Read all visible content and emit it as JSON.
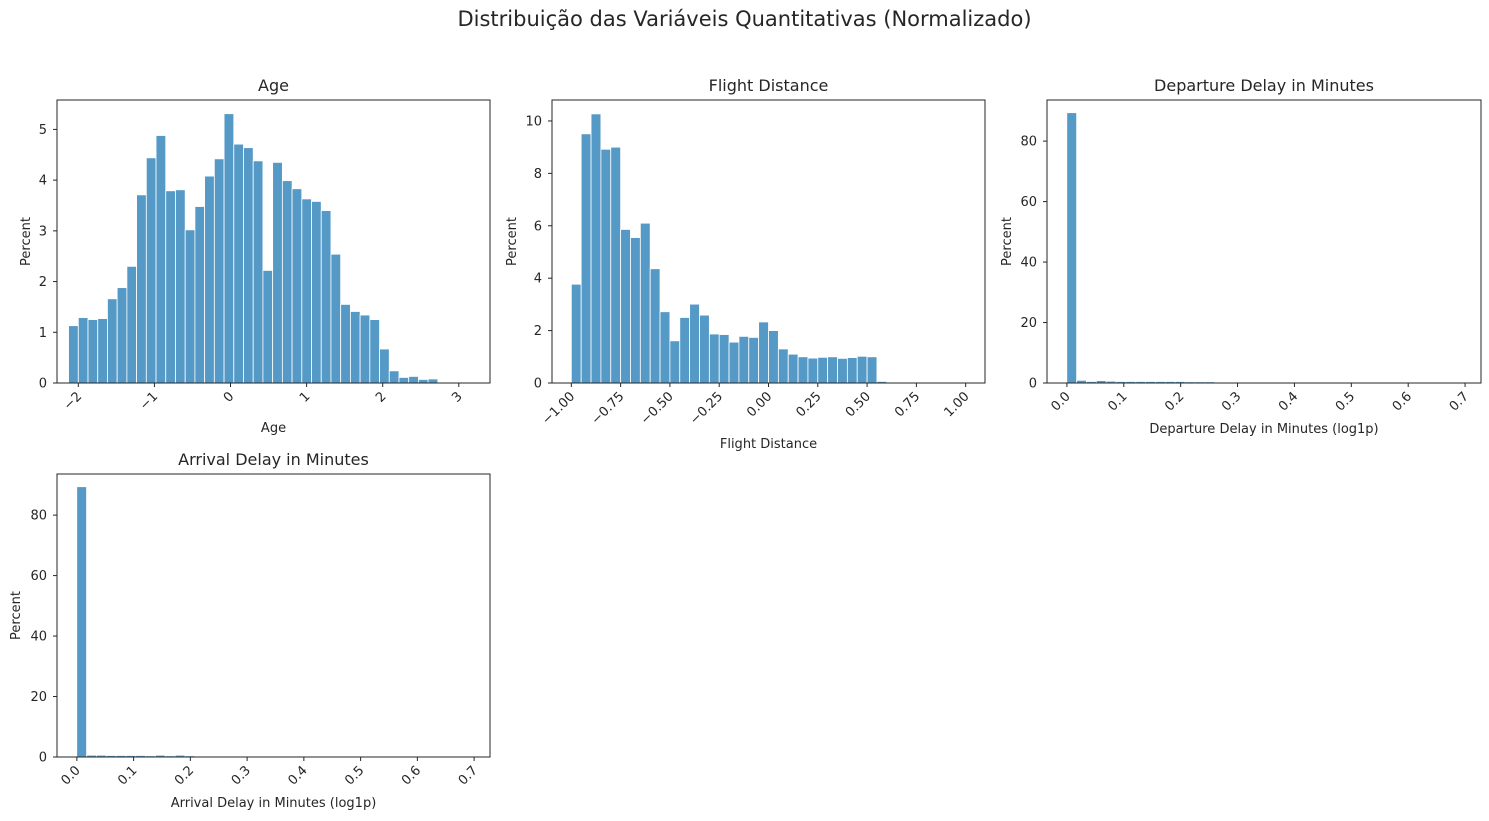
{
  "figure": {
    "title": "Distribuição das Variáveis Quantitativas (Normalizado)",
    "bar_color": "#4c94c4",
    "axis_color": "#262626"
  },
  "chart_data": [
    {
      "type": "bar",
      "title": "Age",
      "xlabel": "Age",
      "ylabel": "Percent",
      "xlim": [
        -2.28,
        3.41
      ],
      "ylim": [
        0,
        5.58
      ],
      "xticks": [
        -2,
        -1,
        0,
        1,
        2,
        3
      ],
      "xtick_labels": [
        "−2",
        "−1",
        "0",
        "1",
        "2",
        "3"
      ],
      "yticks": [
        0,
        1,
        2,
        3,
        4,
        5
      ],
      "ytick_labels": [
        "0",
        "1",
        "2",
        "3",
        "4",
        "5"
      ],
      "bin_start": -2.1279,
      "bin_width": 0.1277,
      "values": [
        1.13,
        1.29,
        1.25,
        1.27,
        1.66,
        1.88,
        2.3,
        3.71,
        4.44,
        4.88,
        3.79,
        3.81,
        3.02,
        3.48,
        4.08,
        4.42,
        5.31,
        4.71,
        4.64,
        4.38,
        2.22,
        4.35,
        3.99,
        3.83,
        3.63,
        3.58,
        3.4,
        2.54,
        1.55,
        1.41,
        1.34,
        1.25,
        0.67,
        0.24,
        0.11,
        0.13,
        0.07,
        0.08,
        0.0,
        0.01
      ]
    },
    {
      "type": "bar",
      "title": "Flight Distance",
      "xlabel": "Flight Distance",
      "ylabel": "Percent",
      "xlim": [
        -1.098,
        1.098
      ],
      "ylim": [
        0,
        10.8
      ],
      "xticks": [
        -1.0,
        -0.75,
        -0.5,
        -0.25,
        0.0,
        0.25,
        0.5,
        0.75,
        1.0
      ],
      "xtick_labels": [
        "−1.00",
        "−0.75",
        "−0.50",
        "−0.25",
        "0.00",
        "0.25",
        "0.50",
        "0.75",
        "1.00"
      ],
      "yticks": [
        0,
        2,
        4,
        6,
        8,
        10
      ],
      "ytick_labels": [
        "0",
        "2",
        "4",
        "6",
        "8",
        "10"
      ],
      "bin_start": -1.0,
      "bin_width": 0.05,
      "values": [
        3.77,
        9.51,
        10.27,
        8.92,
        9.0,
        5.86,
        5.55,
        6.1,
        4.36,
        2.72,
        1.61,
        2.5,
        3.01,
        2.59,
        1.87,
        1.85,
        1.56,
        1.78,
        1.74,
        2.33,
        2.0,
        1.3,
        1.1,
        1.0,
        0.95,
        0.98,
        1.0,
        0.94,
        0.97,
        1.02,
        1.0,
        0.06,
        0.02,
        0.01,
        0.01,
        0.01,
        0.01,
        0.0,
        0.0,
        0.0
      ]
    },
    {
      "type": "bar",
      "title": "Departure Delay in Minutes",
      "xlabel": "Departure Delay in Minutes (log1p)",
      "ylabel": "Percent",
      "xlim": [
        -0.035,
        0.728
      ],
      "ylim": [
        0,
        93.6
      ],
      "xticks": [
        0.0,
        0.1,
        0.2,
        0.3,
        0.4,
        0.5,
        0.6,
        0.7
      ],
      "xtick_labels": [
        "0.0",
        "0.1",
        "0.2",
        "0.3",
        "0.4",
        "0.5",
        "0.6",
        "0.7"
      ],
      "yticks": [
        0,
        20,
        40,
        60,
        80
      ],
      "ytick_labels": [
        "0",
        "20",
        "40",
        "60",
        "80"
      ],
      "bin_start": -0.0002,
      "bin_width": 0.01733,
      "values": [
        89.4,
        0.9,
        0.5,
        0.8,
        0.6,
        0.5,
        0.5,
        0.5,
        0.5,
        0.5,
        0.5,
        0.5,
        0.4,
        0.4,
        0.4,
        0.1,
        0.1,
        0.05,
        0.05,
        0.05,
        0.04,
        0.04,
        0.03,
        0.03,
        0.03,
        0.02,
        0.02,
        0.02,
        0.02,
        0.02,
        0.02,
        0.01,
        0.01,
        0.01,
        0.01,
        0.01,
        0.01,
        0.01,
        0.01,
        0.01
      ]
    },
    {
      "type": "bar",
      "title": "Arrival Delay in Minutes",
      "xlabel": "Arrival Delay in Minutes (log1p)",
      "ylabel": "Percent",
      "xlim": [
        -0.035,
        0.728
      ],
      "ylim": [
        0,
        93.6
      ],
      "xticks": [
        0.0,
        0.1,
        0.2,
        0.3,
        0.4,
        0.5,
        0.6,
        0.7
      ],
      "xtick_labels": [
        "0.0",
        "0.1",
        "0.2",
        "0.3",
        "0.4",
        "0.5",
        "0.6",
        "0.7"
      ],
      "yticks": [
        0,
        20,
        40,
        60,
        80
      ],
      "ytick_labels": [
        "0",
        "20",
        "40",
        "60",
        "80"
      ],
      "bin_start": -0.0002,
      "bin_width": 0.01733,
      "values": [
        89.4,
        0.6,
        0.6,
        0.5,
        0.5,
        0.5,
        0.5,
        0.4,
        0.6,
        0.4,
        0.6,
        0.4,
        0.3,
        0.2,
        0.2,
        0.1,
        0.1,
        0.05,
        0.05,
        0.05,
        0.04,
        0.04,
        0.03,
        0.03,
        0.03,
        0.02,
        0.02,
        0.02,
        0.02,
        0.02,
        0.02,
        0.01,
        0.01,
        0.01,
        0.01,
        0.01,
        0.01,
        0.01,
        0.01,
        0.01
      ]
    }
  ]
}
